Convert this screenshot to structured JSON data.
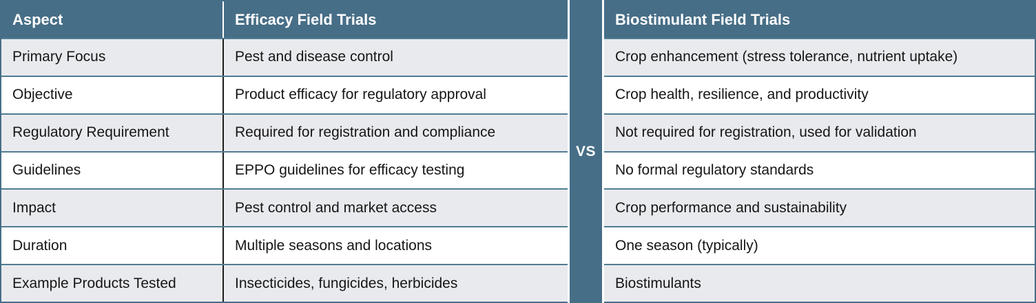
{
  "colors": {
    "slate_header": "#476E87",
    "row_separator": "#4E7C93",
    "column_divider": "#1C1C1C",
    "alt_row_bg": "#E9EAEE",
    "row_bg": "#FFFFFF",
    "header_text": "#FFFFFF",
    "body_text": "#161616"
  },
  "vs_label": "VS",
  "left_table": {
    "headers": {
      "aspect": "Aspect",
      "detail": "Efficacy Field Trials"
    },
    "rows": [
      {
        "aspect": "Primary Focus",
        "detail": "Pest and disease control"
      },
      {
        "aspect": "Objective",
        "detail": "Product efficacy for regulatory approval"
      },
      {
        "aspect": "Regulatory Requirement",
        "detail": "Required for registration and compliance"
      },
      {
        "aspect": "Guidelines",
        "detail": "EPPO guidelines for efficacy testing"
      },
      {
        "aspect": "Impact",
        "detail": "Pest control and market access"
      },
      {
        "aspect": "Duration",
        "detail": "Multiple seasons and locations"
      },
      {
        "aspect": "Example Products Tested",
        "detail": "Insecticides, fungicides, herbicides"
      }
    ]
  },
  "right_table": {
    "header": "Biostimulant Field Trials",
    "rows": [
      {
        "detail": "Crop enhancement (stress tolerance, nutrient uptake)"
      },
      {
        "detail": "Crop health, resilience, and productivity"
      },
      {
        "detail": "Not required for registration, used for validation"
      },
      {
        "detail": "No formal regulatory standards"
      },
      {
        "detail": "Crop performance and sustainability"
      },
      {
        "detail": "One season (typically)"
      },
      {
        "detail": "Biostimulants"
      }
    ]
  }
}
